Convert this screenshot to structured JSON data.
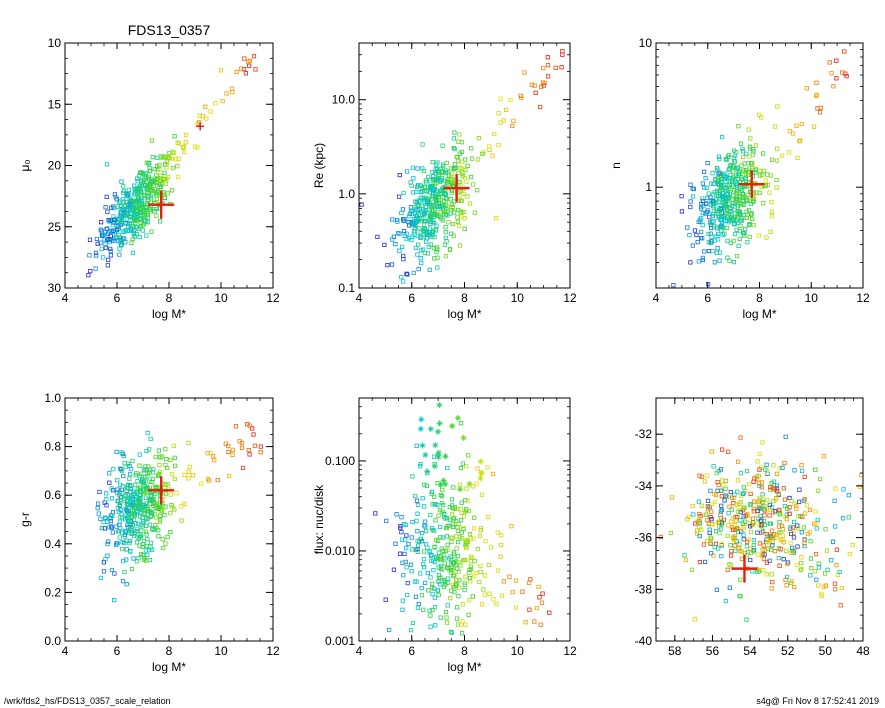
{
  "footer": {
    "left": "/wrk/fds2_hs/FDS13_0357_scale_relation",
    "right": "s4g@  Fri Nov  8 17:52:41 2019"
  },
  "chart_data": [
    {
      "type": "scatter",
      "title": "FDS13_0357",
      "xlabel": "log M*",
      "ylabel": "μ₀",
      "xlim": [
        4,
        12
      ],
      "ylim": [
        30,
        10
      ],
      "y_reversed": true,
      "xticks": [
        "4",
        "6",
        "8",
        "10",
        "12"
      ],
      "yticks": [
        "10",
        "15",
        "20",
        "25",
        "30"
      ],
      "highlight": {
        "x": 7.7,
        "y": 23.2
      },
      "secondary_point": {
        "x": 9.2,
        "y": 16.8
      },
      "cloud": {
        "center": [
          6.7,
          23.4
        ],
        "spread": [
          0.7,
          1.4
        ],
        "slope": -2.2,
        "count": 420,
        "tail_to": [
          11.5,
          10.2
        ]
      }
    },
    {
      "type": "scatter",
      "title": "",
      "xlabel": "log M*",
      "ylabel": "Re (kpc)",
      "xlim": [
        4,
        12
      ],
      "ylim": [
        0.1,
        40
      ],
      "log_y": true,
      "xticks": [
        "4",
        "6",
        "8",
        "10",
        "12"
      ],
      "yticks": [
        "0.1",
        "1.0",
        "10.0"
      ],
      "highlight": {
        "x": 7.7,
        "y": 1.15
      },
      "cloud": {
        "center": [
          6.8,
          0.75
        ],
        "spread": [
          0.7,
          0.25
        ],
        "slope": 0.2,
        "count": 420,
        "tail_to": [
          11.7,
          30
        ]
      }
    },
    {
      "type": "scatter",
      "title": "",
      "xlabel": "log M*",
      "ylabel": "n",
      "xlim": [
        4,
        12
      ],
      "ylim": [
        0.2,
        10
      ],
      "log_y": true,
      "xticks": [
        "4",
        "6",
        "8",
        "10",
        "12"
      ],
      "yticks": [
        "1",
        "10"
      ],
      "highlight": {
        "x": 7.7,
        "y": 1.05
      },
      "cloud": {
        "center": [
          6.8,
          0.8
        ],
        "spread": [
          0.7,
          0.18
        ],
        "slope": 0.12,
        "count": 420,
        "tail_to": [
          11.6,
          8
        ]
      }
    },
    {
      "type": "scatter",
      "title": "",
      "xlabel": "log M*",
      "ylabel": "g-r",
      "xlim": [
        4,
        12
      ],
      "ylim": [
        0.0,
        1.0
      ],
      "xticks": [
        "4",
        "6",
        "8",
        "10",
        "12"
      ],
      "yticks": [
        "0.0",
        "0.2",
        "0.4",
        "0.6",
        "0.8",
        "1.0"
      ],
      "highlight": {
        "x": 7.7,
        "y": 0.62
      },
      "cloud": {
        "center": [
          6.8,
          0.55
        ],
        "spread": [
          0.7,
          0.11
        ],
        "slope": 0.04,
        "count": 420,
        "tail_to": [
          11.6,
          0.87
        ]
      }
    },
    {
      "type": "scatter",
      "title": "",
      "xlabel": "log M*",
      "ylabel": "flux: nuc/disk",
      "xlim": [
        4,
        12
      ],
      "ylim": [
        0.001,
        0.5
      ],
      "log_y": true,
      "xticks": [
        "4",
        "6",
        "8",
        "10",
        "12"
      ],
      "yticks": [
        "0.001",
        "0.010",
        "0.100"
      ],
      "cloud": {
        "center": [
          7.2,
          0.01
        ],
        "spread": [
          0.9,
          0.45
        ],
        "slope": 0.0,
        "count": 330,
        "tail_to": [
          11.2,
          0.002
        ]
      }
    },
    {
      "type": "scatter",
      "title": "",
      "xlabel": "",
      "ylabel": "",
      "xlim": [
        59,
        48
      ],
      "ylim": [
        -40,
        -30.6
      ],
      "x_reversed": true,
      "xticks": [
        "58",
        "56",
        "54",
        "52",
        "50",
        "48"
      ],
      "yticks": [
        "-32",
        "-34",
        "-36",
        "-38",
        "-40"
      ],
      "highlight": {
        "x": 54.3,
        "y": -37.2
      },
      "cloud": {
        "center": [
          53.8,
          -35.4
        ],
        "spread": [
          1.9,
          1.1
        ],
        "slope": 0.0,
        "count": 420,
        "tail_to": [
          49.2,
          -37.8
        ]
      }
    }
  ]
}
